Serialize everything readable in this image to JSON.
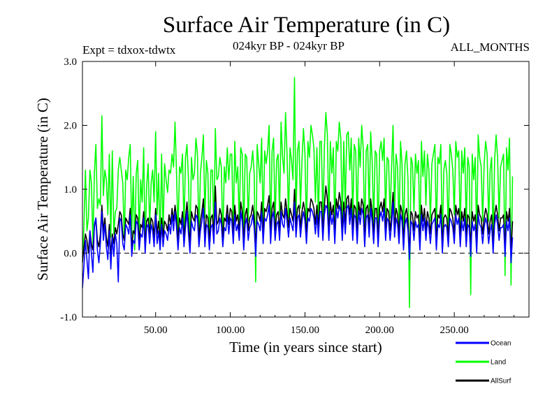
{
  "chart_data": {
    "type": "line",
    "title": "Surface Air Temperature (in C)",
    "subtitle_left": "Expt = tdxox-tdwtx",
    "subtitle_center": "024kyr BP - 024kyr BP",
    "subtitle_right": "ALL_MONTHS",
    "xlabel": "Time (in years since start)",
    "ylabel": "Surface Air Temperature (in C)",
    "xlim": [
      1,
      300
    ],
    "ylim": [
      -1.0,
      3.0
    ],
    "x_ticks": [
      50,
      100,
      150,
      200,
      250
    ],
    "x_tick_labels": [
      "50.00",
      "100.00",
      "150.00",
      "200.00",
      "250.00"
    ],
    "y_ticks": [
      -1.0,
      0.0,
      1.0,
      2.0,
      3.0
    ],
    "y_tick_labels": [
      "-1.0",
      "0.0",
      "1.0",
      "2.0",
      "3.0"
    ],
    "reference_line": {
      "y": 0.0,
      "style": "dashed"
    },
    "series": [
      {
        "name": "Land",
        "color": "#00ff00",
        "x_start": 1,
        "x_step": 1,
        "values": [
          -0.15,
          0.45,
          1.3,
          0.35,
          0.55,
          1.3,
          1.1,
          0.15,
          1.25,
          1.7,
          0.7,
          0.85,
          0.75,
          2.15,
          0.9,
          1.3,
          1.15,
          0.6,
          1.55,
          0.25,
          1.6,
          0.3,
          0.65,
          0.7,
          1.3,
          1.5,
          1.3,
          1.1,
          0.2,
          1.3,
          1.15,
          1.5,
          1.7,
          0.3,
          1.2,
          0.05,
          1.25,
          1.45,
          0.3,
          1.15,
          0.8,
          1.65,
          0.1,
          1.05,
          1.4,
          0.4,
          1.1,
          1.3,
          0.8,
          1.9,
          0.6,
          1.25,
          0.05,
          1.55,
          0.3,
          1.4,
          1.15,
          0.95,
          1.3,
          1.25,
          1.55,
          1.35,
          2.05,
          1.25,
          0.3,
          1.35,
          1.25,
          1.55,
          0.35,
          1.5,
          1.7,
          1.15,
          0.1,
          1.5,
          1.15,
          1.25,
          1.8,
          1.55,
          0.2,
          1.25,
          1.5,
          1.85,
          0.55,
          1.45,
          1.25,
          0.1,
          1.3,
          1.3,
          0.35,
          1.95,
          1.15,
          1.2,
          1.5,
          1.35,
          0.15,
          1.35,
          1.1,
          1.65,
          1.15,
          1.55,
          1.55,
          0.3,
          1.75,
          1.1,
          1.35,
          0.45,
          1.65,
          1.55,
          0.3,
          1.55,
          1.5,
          0.5,
          1.25,
          1.35,
          1.6,
          1.25,
          -0.45,
          1.7,
          1.4,
          1.1,
          1.8,
          0.35,
          1.6,
          1.4,
          1.6,
          2.0,
          0.3,
          1.6,
          1.8,
          0.4,
          1.45,
          1.55,
          0.6,
          2.05,
          1.5,
          1.25,
          2.2,
          1.55,
          0.55,
          1.65,
          1.45,
          1.15,
          2.75,
          0.55,
          1.6,
          1.75,
          0.7,
          1.45,
          1.95,
          1.55,
          0.35,
          1.75,
          1.5,
          2.0,
          1.85,
          1.65,
          0.8,
          1.65,
          0.5,
          1.75,
          1.75,
          0.45,
          1.65,
          2.2,
          1.85,
          0.5,
          1.75,
          1.25,
          1.65,
          0.35,
          1.75,
          1.6,
          2.05,
          1.8,
          0.45,
          1.75,
          0.7,
          1.85,
          1.9,
          1.3,
          1.8,
          0.5,
          1.7,
          1.6,
          0.4,
          1.8,
          1.35,
          2.0,
          1.65,
          0.2,
          1.6,
          1.7,
          0.65,
          1.9,
          1.45,
          0.45,
          1.6,
          1.55,
          0.25,
          1.6,
          1.75,
          1.45,
          1.8,
          0.55,
          1.5,
          1.45,
          0.55,
          1.35,
          2.0,
          0.6,
          1.55,
          1.35,
          0.35,
          1.75,
          1.4,
          0.25,
          1.4,
          1.6,
          1.15,
          -0.85,
          1.5,
          1.4,
          0.65,
          1.55,
          1.25,
          1.45,
          0.2,
          1.75,
          1.2,
          1.6,
          0.75,
          1.55,
          1.3,
          0.5,
          1.4,
          1.55,
          1.7,
          0.3,
          1.5,
          1.4,
          1.7,
          0.15,
          1.3,
          1.45,
          1.25,
          0.3,
          1.7,
          1.55,
          1.3,
          0.6,
          1.75,
          1.5,
          1.6,
          0.35,
          1.6,
          1.25,
          1.65,
          0.4,
          1.5,
          1.35,
          -0.65,
          1.55,
          1.15,
          1.5,
          0.2,
          1.85,
          1.5,
          1.35,
          0.5,
          1.4,
          1.75,
          1.55,
          0.5,
          1.3,
          1.5,
          0.2,
          1.45,
          1.85,
          1.5,
          0.55,
          1.35,
          1.45,
          1.55,
          -0.35,
          1.65,
          1.3,
          1.8,
          -0.5,
          1.2
        ]
      },
      {
        "name": "AllSurf",
        "color": "#000000",
        "x_start": 1,
        "x_step": 1,
        "values": [
          -0.15,
          0.1,
          0.3,
          0.2,
          0.0,
          0.35,
          0.15,
          0.05,
          0.4,
          0.55,
          0.2,
          0.1,
          0.3,
          0.75,
          0.35,
          0.55,
          0.25,
          0.1,
          0.45,
          -0.05,
          0.3,
          0.15,
          0.4,
          0.3,
          0.45,
          0.65,
          0.6,
          0.3,
          0.2,
          0.55,
          0.5,
          0.45,
          0.7,
          0.1,
          0.35,
          0.3,
          0.6,
          0.55,
          0.2,
          0.45,
          0.4,
          0.65,
          0.15,
          0.5,
          0.55,
          0.3,
          0.55,
          0.5,
          0.25,
          0.7,
          0.3,
          0.5,
          0.2,
          0.55,
          0.25,
          0.5,
          0.45,
          0.35,
          0.6,
          0.45,
          0.7,
          0.5,
          0.75,
          0.55,
          0.2,
          0.55,
          0.45,
          0.65,
          0.25,
          0.55,
          0.8,
          0.45,
          0.15,
          0.65,
          0.55,
          0.5,
          0.75,
          0.7,
          0.25,
          0.5,
          0.65,
          0.85,
          0.25,
          0.6,
          0.55,
          0.2,
          0.55,
          0.6,
          0.3,
          1.05,
          0.45,
          0.5,
          0.7,
          0.6,
          0.25,
          0.55,
          0.5,
          0.75,
          0.45,
          0.7,
          0.65,
          0.3,
          0.75,
          0.5,
          0.6,
          0.35,
          0.8,
          0.65,
          0.2,
          0.6,
          0.7,
          0.35,
          0.55,
          0.6,
          0.75,
          0.55,
          0.1,
          0.65,
          0.6,
          0.5,
          0.8,
          0.3,
          0.7,
          0.65,
          0.75,
          0.9,
          0.3,
          0.7,
          0.8,
          0.35,
          0.6,
          0.65,
          0.35,
          0.8,
          0.6,
          0.55,
          0.85,
          0.65,
          0.4,
          0.7,
          0.6,
          0.5,
          1.0,
          0.4,
          0.7,
          0.75,
          0.4,
          0.65,
          0.8,
          0.65,
          0.3,
          0.7,
          0.65,
          0.85,
          0.8,
          0.7,
          0.45,
          0.75,
          0.4,
          0.8,
          0.8,
          0.35,
          0.75,
          1.05,
          0.85,
          0.35,
          0.8,
          0.6,
          0.75,
          0.3,
          0.85,
          0.7,
          0.95,
          0.8,
          0.35,
          0.8,
          0.45,
          0.85,
          0.9,
          0.6,
          0.85,
          0.35,
          0.75,
          0.7,
          0.3,
          0.8,
          0.6,
          0.85,
          0.75,
          0.25,
          0.7,
          0.75,
          0.4,
          0.85,
          0.65,
          0.3,
          0.7,
          0.7,
          0.25,
          0.7,
          0.8,
          0.65,
          0.85,
          0.35,
          0.7,
          0.65,
          0.35,
          0.6,
          0.95,
          0.4,
          0.7,
          0.6,
          0.3,
          0.75,
          0.65,
          0.2,
          0.6,
          0.7,
          0.5,
          0.0,
          0.65,
          0.6,
          0.35,
          0.65,
          0.55,
          0.6,
          0.2,
          0.75,
          0.5,
          0.7,
          0.35,
          0.65,
          0.55,
          0.3,
          0.6,
          0.65,
          0.7,
          0.2,
          0.6,
          0.55,
          0.75,
          0.15,
          0.55,
          0.6,
          0.55,
          0.25,
          0.7,
          0.65,
          0.55,
          0.3,
          0.75,
          0.6,
          0.7,
          0.25,
          0.65,
          0.5,
          0.7,
          0.25,
          0.6,
          0.55,
          0.1,
          0.65,
          0.5,
          0.6,
          0.15,
          0.75,
          0.6,
          0.55,
          0.3,
          0.55,
          0.7,
          0.6,
          0.3,
          0.5,
          0.6,
          0.15,
          0.6,
          0.75,
          0.6,
          0.35,
          0.55,
          0.55,
          0.6,
          0.1,
          0.65,
          0.5,
          0.7,
          0.0,
          0.5
        ]
      },
      {
        "name": "Ocean",
        "color": "#0000ff",
        "x_start": 1,
        "x_step": 1,
        "values": [
          -0.55,
          -0.2,
          0.2,
          -0.1,
          -0.4,
          0.35,
          0.0,
          -0.3,
          0.45,
          0.55,
          0.05,
          -0.15,
          0.15,
          0.65,
          0.2,
          0.45,
          0.1,
          -0.1,
          0.35,
          -0.25,
          0.25,
          -0.05,
          0.3,
          0.15,
          -0.45,
          0.55,
          0.5,
          0.15,
          0.05,
          0.45,
          0.4,
          0.3,
          0.6,
          -0.05,
          0.2,
          0.15,
          0.5,
          0.45,
          0.05,
          0.3,
          0.25,
          0.55,
          0.0,
          0.4,
          0.45,
          0.15,
          0.45,
          0.35,
          0.1,
          0.6,
          0.15,
          0.35,
          0.05,
          0.45,
          0.1,
          0.35,
          0.3,
          0.2,
          0.45,
          0.3,
          0.6,
          0.35,
          0.65,
          0.4,
          0.05,
          0.4,
          0.3,
          0.55,
          0.1,
          0.4,
          0.65,
          0.3,
          0.0,
          0.5,
          0.4,
          0.35,
          0.6,
          0.55,
          0.1,
          0.35,
          0.5,
          0.7,
          0.1,
          0.45,
          0.4,
          0.05,
          0.4,
          0.45,
          0.15,
          0.8,
          0.3,
          0.35,
          0.55,
          0.45,
          0.1,
          0.4,
          0.35,
          0.6,
          0.3,
          0.55,
          0.5,
          0.15,
          0.6,
          0.35,
          0.45,
          0.2,
          0.65,
          0.5,
          0.05,
          0.45,
          0.55,
          0.2,
          0.4,
          0.45,
          0.6,
          0.4,
          -0.05,
          0.5,
          0.45,
          0.35,
          0.65,
          0.15,
          0.55,
          0.5,
          0.6,
          0.75,
          0.15,
          0.55,
          0.65,
          0.2,
          0.45,
          0.5,
          0.2,
          0.65,
          0.45,
          0.4,
          0.7,
          0.5,
          0.25,
          0.55,
          0.45,
          0.35,
          0.8,
          0.25,
          0.55,
          0.6,
          0.25,
          0.5,
          0.65,
          0.5,
          0.15,
          0.55,
          0.5,
          0.7,
          0.65,
          0.55,
          0.3,
          0.6,
          0.25,
          0.65,
          0.65,
          0.2,
          0.6,
          0.75,
          0.7,
          0.2,
          0.65,
          0.45,
          0.6,
          0.15,
          0.7,
          0.55,
          0.75,
          0.65,
          0.2,
          0.65,
          0.3,
          0.7,
          0.75,
          0.45,
          0.7,
          0.2,
          0.6,
          0.55,
          0.15,
          0.65,
          0.45,
          0.7,
          0.6,
          0.1,
          0.55,
          0.6,
          0.25,
          0.7,
          0.5,
          0.15,
          0.55,
          0.55,
          0.1,
          0.55,
          0.65,
          0.5,
          0.7,
          0.2,
          0.55,
          0.5,
          0.2,
          0.45,
          0.8,
          0.25,
          0.55,
          0.45,
          0.15,
          0.6,
          0.5,
          0.05,
          0.45,
          0.55,
          0.35,
          -0.1,
          0.5,
          0.45,
          0.2,
          0.5,
          0.4,
          0.45,
          0.05,
          0.6,
          0.35,
          0.55,
          0.2,
          0.5,
          0.4,
          0.15,
          0.45,
          0.5,
          0.55,
          0.05,
          0.45,
          0.4,
          0.6,
          0.0,
          0.4,
          0.45,
          0.4,
          0.1,
          0.55,
          0.5,
          0.4,
          0.15,
          0.6,
          0.45,
          0.55,
          0.1,
          0.5,
          0.35,
          0.55,
          0.1,
          0.45,
          0.4,
          -0.05,
          0.5,
          0.35,
          0.45,
          0.0,
          0.6,
          0.45,
          0.4,
          0.15,
          0.4,
          0.55,
          0.45,
          0.15,
          0.35,
          0.45,
          0.0,
          0.45,
          0.6,
          0.45,
          0.2,
          0.4,
          0.4,
          0.45,
          -0.05,
          0.5,
          0.35,
          0.55,
          -0.15,
          0.25
        ]
      }
    ],
    "legend": {
      "placement": "bottom-right",
      "entries": [
        {
          "label": "Ocean",
          "color": "#0000ff"
        },
        {
          "label": "Land",
          "color": "#00ff00"
        },
        {
          "label": "AllSurf",
          "color": "#000000"
        }
      ]
    }
  }
}
